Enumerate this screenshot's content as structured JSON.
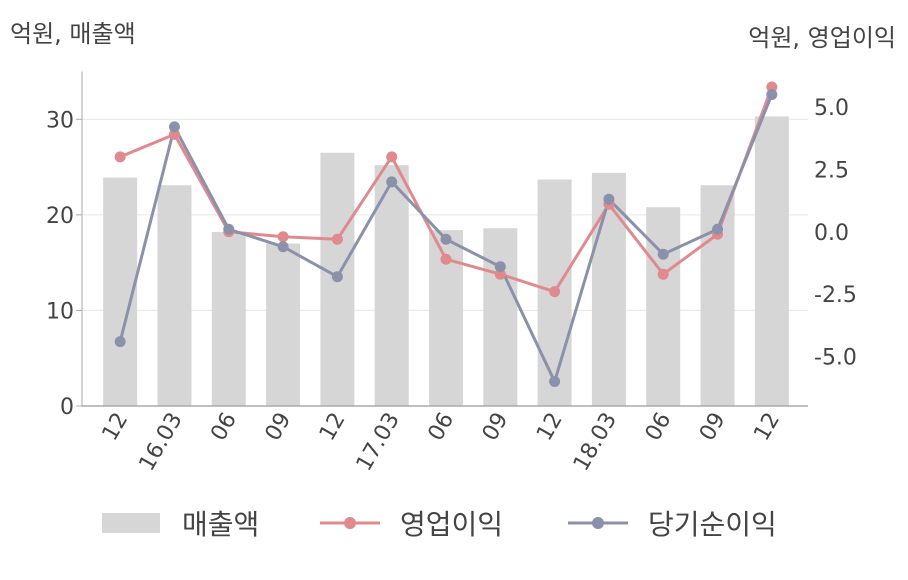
{
  "unit_left": "억원, 매출액",
  "unit_right": "억원, 영업이익",
  "colors": {
    "bar": "#d6d6d6",
    "operating": "#e08a8e",
    "net": "#8b91aa",
    "axis": "#aaaaaa",
    "grid": "#e6e6e6"
  },
  "legend": {
    "sales": "매출액",
    "operating": "영업이익",
    "net": "당기순이익"
  },
  "chart_data": {
    "type": "bar+line",
    "categories": [
      "12",
      "16.03",
      "06",
      "09",
      "12",
      "17.03",
      "06",
      "09",
      "12",
      "18.03",
      "06",
      "09",
      "12"
    ],
    "y_left": {
      "ylim": [
        0,
        35
      ],
      "ticks": [
        0,
        10,
        20,
        30
      ]
    },
    "y_right": {
      "ylim": [
        -6.9,
        6.6
      ],
      "ticks": [
        "5.0",
        "2.5",
        "0.0",
        "-2.5",
        "-5.0"
      ],
      "tick_values": [
        5,
        2.5,
        0,
        -2.5,
        -5
      ]
    },
    "grid": true,
    "legend_position": "bottom",
    "series": [
      {
        "name": "매출액",
        "type": "bar",
        "axis": "left",
        "values": [
          23.9,
          23.1,
          18.2,
          17.0,
          26.5,
          25.2,
          18.4,
          18.6,
          23.7,
          24.4,
          20.8,
          23.1,
          30.3
        ]
      },
      {
        "name": "영업이익",
        "type": "line",
        "axis": "right",
        "values": [
          3.0,
          3.9,
          0.0,
          -0.2,
          -0.3,
          3.0,
          -1.1,
          -1.7,
          -2.4,
          1.1,
          -1.7,
          -0.1,
          5.8
        ]
      },
      {
        "name": "당기순이익",
        "type": "line",
        "axis": "right",
        "values": [
          -4.4,
          4.2,
          0.1,
          -0.6,
          -1.8,
          2.0,
          -0.3,
          -1.4,
          -6.0,
          1.3,
          -0.9,
          0.1,
          5.5
        ]
      }
    ]
  }
}
